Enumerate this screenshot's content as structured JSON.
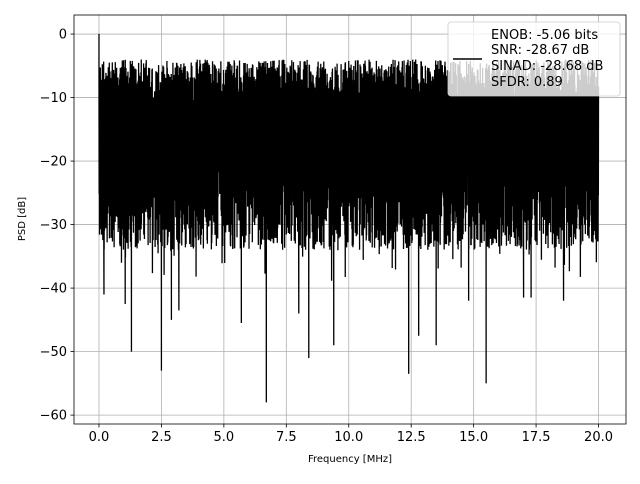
{
  "chart_data": {
    "type": "line",
    "title": "",
    "xlabel": "Frequency [MHz]",
    "ylabel": "PSD [dB]",
    "xlim": [
      -1.0,
      21.1
    ],
    "ylim": [
      -61.4,
      3.0
    ],
    "xticks": [
      0.0,
      2.5,
      5.0,
      7.5,
      10.0,
      12.5,
      15.0,
      17.5,
      20.0
    ],
    "xtick_labels": [
      "0.0",
      "2.5",
      "5.0",
      "7.5",
      "10.0",
      "12.5",
      "15.0",
      "17.5",
      "20.0"
    ],
    "yticks": [
      0,
      -10,
      -20,
      -30,
      -40,
      -50,
      -60
    ],
    "ytick_labels": [
      "0",
      "−10",
      "−20",
      "−30",
      "−40",
      "−50",
      "−60"
    ],
    "grid": true,
    "legend_placement": "upper-right",
    "legend": [
      "ENOB: -5.06 bits",
      "SNR: -28.67 dB",
      "SINAD: -28.68 dB",
      "SFDR: 0.89"
    ],
    "series": [
      {
        "color": "#000000",
        "x_range": [
          0.0,
          20.0
        ],
        "typical_upper_db": -7,
        "typical_lower_db": -30,
        "notable_points": [
          {
            "x": 0.0,
            "y": 0.0
          },
          {
            "x": 0.2,
            "y": -41
          },
          {
            "x": 1.05,
            "y": -42.5
          },
          {
            "x": 1.3,
            "y": -50
          },
          {
            "x": 2.5,
            "y": -53
          },
          {
            "x": 2.9,
            "y": -45
          },
          {
            "x": 3.2,
            "y": -43.5
          },
          {
            "x": 5.7,
            "y": -45.5
          },
          {
            "x": 6.7,
            "y": -58
          },
          {
            "x": 8.0,
            "y": -44
          },
          {
            "x": 8.4,
            "y": -51
          },
          {
            "x": 9.4,
            "y": -49
          },
          {
            "x": 12.4,
            "y": -53.5
          },
          {
            "x": 12.8,
            "y": -47.5
          },
          {
            "x": 13.5,
            "y": -49
          },
          {
            "x": 14.8,
            "y": -42
          },
          {
            "x": 15.5,
            "y": -55
          },
          {
            "x": 17.0,
            "y": -41.5
          },
          {
            "x": 17.3,
            "y": -41.5
          },
          {
            "x": 18.6,
            "y": -42
          }
        ]
      }
    ]
  }
}
